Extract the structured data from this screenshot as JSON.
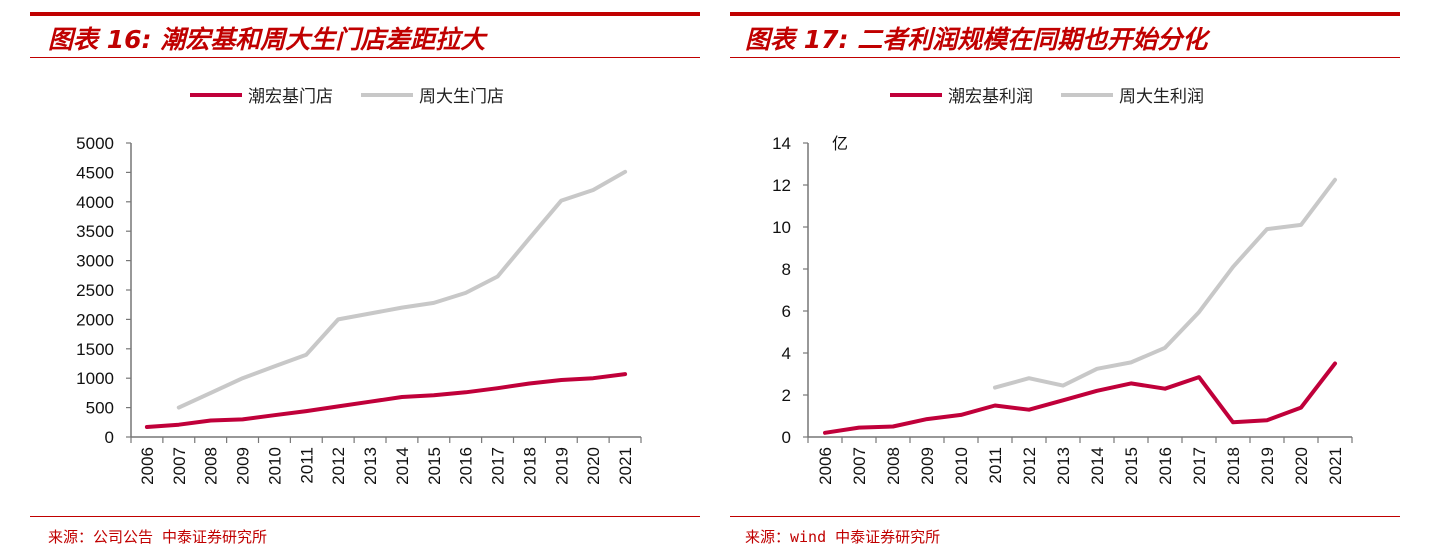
{
  "colors": {
    "accent": "#c00000",
    "series1": "#c0003a",
    "series2": "#c8c8c8",
    "axis": "#777777"
  },
  "charts": [
    {
      "title": "图表 16:  潮宏基和周大生门店差距拉大",
      "source": "来源：公司公告  中泰证券研究所"
    },
    {
      "title": "图表 17:  二者利润规模在同期也开始分化",
      "source": "来源：wind  中泰证券研究所"
    }
  ],
  "chart_data": [
    {
      "type": "line",
      "title": "图表 16:  潮宏基和周大生门店差距拉大",
      "categories": [
        "2006",
        "2007",
        "2008",
        "2009",
        "2010",
        "2011",
        "2012",
        "2013",
        "2014",
        "2015",
        "2016",
        "2017",
        "2018",
        "2019",
        "2020",
        "2021"
      ],
      "ylim": [
        0,
        5000
      ],
      "yticks": [
        "0",
        "500",
        "1000",
        "1500",
        "2000",
        "2500",
        "3000",
        "3500",
        "4000",
        "4500",
        "5000"
      ],
      "ylabel": "",
      "legend_position": "top",
      "grid": false,
      "series": [
        {
          "name": "潮宏基门店",
          "values": [
            170,
            210,
            280,
            300,
            370,
            440,
            520,
            600,
            680,
            710,
            760,
            830,
            910,
            970,
            1000,
            1070
          ]
        },
        {
          "name": "周大生门店",
          "values": [
            null,
            500,
            750,
            1000,
            1200,
            1400,
            2000,
            2100,
            2200,
            2280,
            2450,
            2730,
            3380,
            4020,
            4200,
            4510
          ]
        }
      ]
    },
    {
      "type": "line",
      "title": "图表 17:  二者利润规模在同期也开始分化",
      "categories": [
        "2006",
        "2007",
        "2008",
        "2009",
        "2010",
        "2011",
        "2012",
        "2013",
        "2014",
        "2015",
        "2016",
        "2017",
        "2018",
        "2019",
        "2020",
        "2021"
      ],
      "ylim": [
        0,
        14
      ],
      "yticks": [
        "0",
        "2",
        "4",
        "6",
        "8",
        "10",
        "12",
        "14"
      ],
      "ylabel": "亿",
      "legend_position": "top",
      "grid": false,
      "series": [
        {
          "name": "潮宏基利润",
          "values": [
            0.2,
            0.45,
            0.5,
            0.85,
            1.05,
            1.5,
            1.3,
            1.75,
            2.2,
            2.55,
            2.3,
            2.85,
            0.7,
            0.8,
            1.4,
            3.5
          ]
        },
        {
          "name": "周大生利润",
          "values": [
            null,
            null,
            null,
            null,
            null,
            2.35,
            2.8,
            2.45,
            3.25,
            3.55,
            4.25,
            5.95,
            8.1,
            9.9,
            10.1,
            12.25
          ]
        }
      ]
    }
  ]
}
